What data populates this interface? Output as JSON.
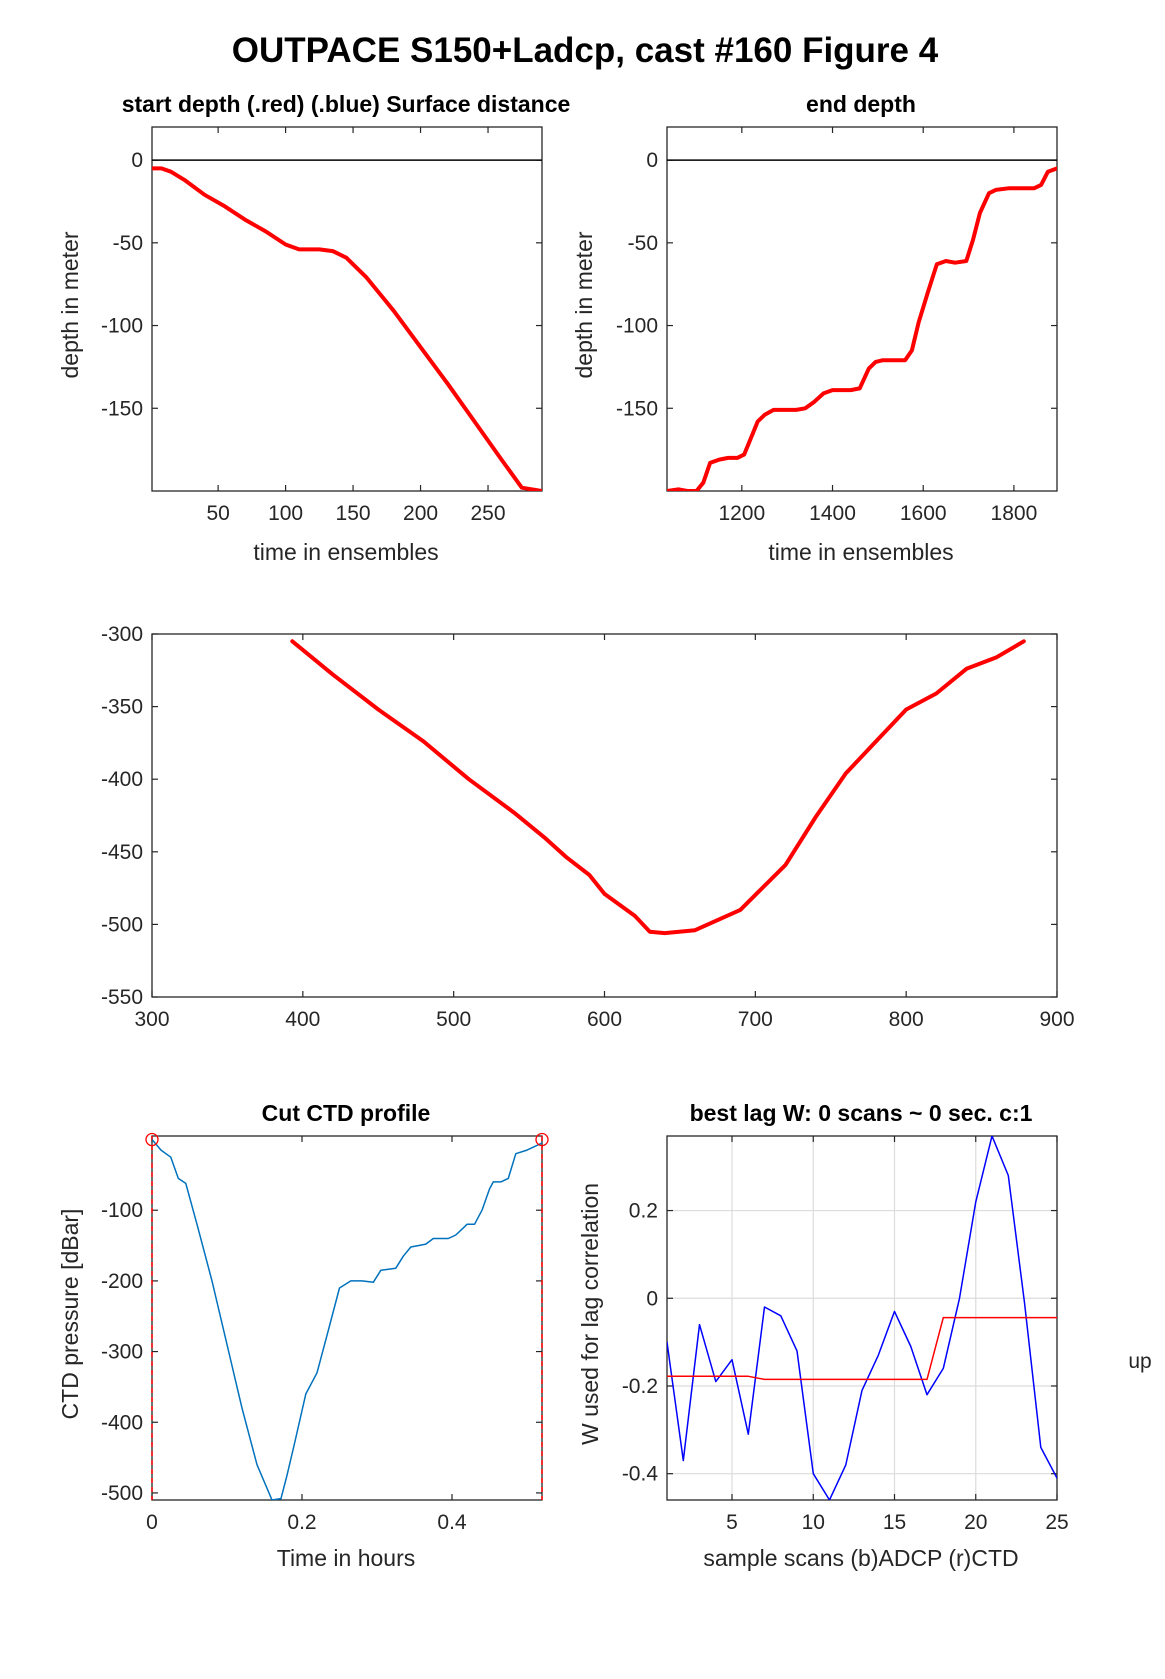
{
  "figure": {
    "title": "OUTPACE S150+Ladcp, cast #160   Figure 4",
    "side_label": "up"
  },
  "chart_data": [
    {
      "id": "start_depth",
      "type": "line",
      "title": "start depth (.red) (.blue) Surface distance",
      "xlabel": "time in ensembles",
      "ylabel": "depth in meter",
      "xlim": [
        1,
        290
      ],
      "ylim": [
        -200,
        20
      ],
      "xticks": [
        50,
        100,
        150,
        200,
        250
      ],
      "yticks": [
        0,
        -50,
        -100,
        -150
      ],
      "grid": false,
      "hline": 0,
      "series": [
        {
          "color": "#ff0000",
          "width": 4,
          "x": [
            1,
            8,
            15,
            25,
            40,
            55,
            70,
            85,
            100,
            110,
            125,
            135,
            145,
            160,
            180,
            200,
            220,
            240,
            260,
            275,
            290
          ],
          "y": [
            -5,
            -5,
            -7,
            -12,
            -21,
            -28,
            -36,
            -43,
            -51,
            -54,
            -54,
            -55,
            -59,
            -71,
            -91,
            -113,
            -135,
            -158,
            -181,
            -198,
            -200
          ]
        }
      ]
    },
    {
      "id": "end_depth",
      "type": "line",
      "title": "end depth",
      "xlabel": "time in ensembles",
      "ylabel": "depth in meter",
      "xlim": [
        1035,
        1895
      ],
      "ylim": [
        -200,
        20
      ],
      "xticks": [
        1200,
        1400,
        1600,
        1800
      ],
      "yticks": [
        0,
        -50,
        -100,
        -150
      ],
      "grid": false,
      "hline": 0,
      "series": [
        {
          "color": "#ff0000",
          "width": 4,
          "x": [
            1035,
            1060,
            1080,
            1100,
            1115,
            1130,
            1150,
            1170,
            1190,
            1205,
            1220,
            1235,
            1250,
            1270,
            1300,
            1320,
            1340,
            1360,
            1380,
            1400,
            1420,
            1440,
            1460,
            1480,
            1495,
            1510,
            1530,
            1560,
            1575,
            1590,
            1610,
            1630,
            1650,
            1670,
            1695,
            1710,
            1725,
            1745,
            1760,
            1790,
            1820,
            1845,
            1860,
            1875,
            1895
          ],
          "y": [
            -200,
            -199,
            -200,
            -200,
            -195,
            -183,
            -181,
            -180,
            -180,
            -178,
            -168,
            -158,
            -154,
            -151,
            -151,
            -151,
            -150,
            -146,
            -141,
            -139,
            -139,
            -139,
            -138,
            -126,
            -122,
            -121,
            -121,
            -121,
            -115,
            -98,
            -80,
            -63,
            -61,
            -62,
            -61,
            -48,
            -32,
            -20,
            -18,
            -17,
            -17,
            -17,
            -15,
            -7,
            -5
          ]
        }
      ]
    },
    {
      "id": "depth_profile",
      "type": "line",
      "title": "",
      "xlabel": "",
      "ylabel": "",
      "xlim": [
        300,
        900
      ],
      "ylim": [
        -550,
        -300
      ],
      "xticks": [
        300,
        400,
        500,
        600,
        700,
        800,
        900
      ],
      "yticks": [
        -300,
        -350,
        -400,
        -450,
        -500,
        -550
      ],
      "grid": false,
      "series": [
        {
          "color": "#ff0000",
          "width": 4,
          "x": [
            393,
            420,
            450,
            480,
            510,
            540,
            560,
            575,
            590,
            600,
            620,
            630,
            640,
            660,
            690,
            720,
            740,
            760,
            780,
            800,
            820,
            840,
            860,
            878
          ],
          "y": [
            -305,
            -328,
            -352,
            -374,
            -400,
            -423,
            -440,
            -454,
            -466,
            -479,
            -494,
            -505,
            -506,
            -504,
            -490,
            -459,
            -426,
            -396,
            -374,
            -352,
            -341,
            -324,
            -316,
            -305
          ]
        }
      ]
    },
    {
      "id": "cut_ctd",
      "type": "line",
      "title": "Cut CTD profile",
      "xlabel": "Time in hours",
      "ylabel": "CTD pressure [dBar]",
      "xlim": [
        0,
        0.52
      ],
      "ylim": [
        -510,
        5
      ],
      "xticks": [
        0,
        0.2,
        0.4
      ],
      "xticklabels": [
        "0",
        "0.2",
        "0.4"
      ],
      "yticks": [
        -100,
        -200,
        -300,
        -400,
        -500
      ],
      "grid": false,
      "vlines": [
        0,
        0.52
      ],
      "markers": [
        {
          "x": 0,
          "y": 0,
          "color": "#ff0000"
        },
        {
          "x": 0.52,
          "y": 0,
          "color": "#ff0000"
        }
      ],
      "series": [
        {
          "color": "#0072bd",
          "width": 1.5,
          "x": [
            0,
            0.012,
            0.025,
            0.035,
            0.045,
            0.06,
            0.08,
            0.1,
            0.12,
            0.14,
            0.16,
            0.172,
            0.18,
            0.19,
            0.205,
            0.22,
            0.235,
            0.25,
            0.265,
            0.28,
            0.295,
            0.305,
            0.325,
            0.335,
            0.345,
            0.355,
            0.365,
            0.375,
            0.385,
            0.395,
            0.405,
            0.415,
            0.42,
            0.43,
            0.44,
            0.45,
            0.455,
            0.465,
            0.475,
            0.485,
            0.5,
            0.52
          ],
          "y": [
            0,
            -15,
            -25,
            -55,
            -62,
            -120,
            -200,
            -290,
            -380,
            -460,
            -510,
            -508,
            -475,
            -430,
            -360,
            -330,
            -270,
            -210,
            -200,
            -200,
            -202,
            -185,
            -182,
            -165,
            -152,
            -150,
            -148,
            -140,
            -140,
            -140,
            -135,
            -125,
            -120,
            -120,
            -100,
            -70,
            -60,
            -60,
            -55,
            -20,
            -15,
            -5
          ]
        }
      ]
    },
    {
      "id": "best_lag",
      "type": "line",
      "title": "best lag W: 0 scans ~ 0 sec.  c:1",
      "xlabel": "sample scans (b)ADCP (r)CTD",
      "ylabel": "W used for lag correlation",
      "xlim": [
        1,
        25
      ],
      "ylim": [
        -0.46,
        0.37
      ],
      "xticks": [
        5,
        10,
        15,
        20,
        25
      ],
      "yticks": [
        0.2,
        0,
        -0.2,
        -0.4
      ],
      "yticklabels": [
        "0.2",
        "0",
        "-0.2",
        "-0.4"
      ],
      "grid": true,
      "series": [
        {
          "color": "#0000ff",
          "width": 1.5,
          "x": [
            1,
            2,
            3,
            4,
            5,
            6,
            7,
            8,
            9,
            10,
            11,
            12,
            13,
            14,
            15,
            16,
            17,
            18,
            19,
            20,
            21,
            22,
            23,
            24,
            25
          ],
          "y": [
            -0.1,
            -0.37,
            -0.06,
            -0.19,
            -0.14,
            -0.31,
            -0.02,
            -0.04,
            -0.12,
            -0.4,
            -0.46,
            -0.38,
            -0.21,
            -0.13,
            -0.03,
            -0.11,
            -0.22,
            -0.16,
            0.0,
            0.22,
            0.37,
            0.28,
            -0.01,
            -0.34,
            -0.41
          ]
        },
        {
          "color": "#ff0000",
          "width": 1.5,
          "x": [
            1,
            6,
            7,
            17,
            18,
            25
          ],
          "y": [
            -0.178,
            -0.178,
            -0.185,
            -0.185,
            -0.044,
            -0.044
          ]
        }
      ]
    }
  ]
}
